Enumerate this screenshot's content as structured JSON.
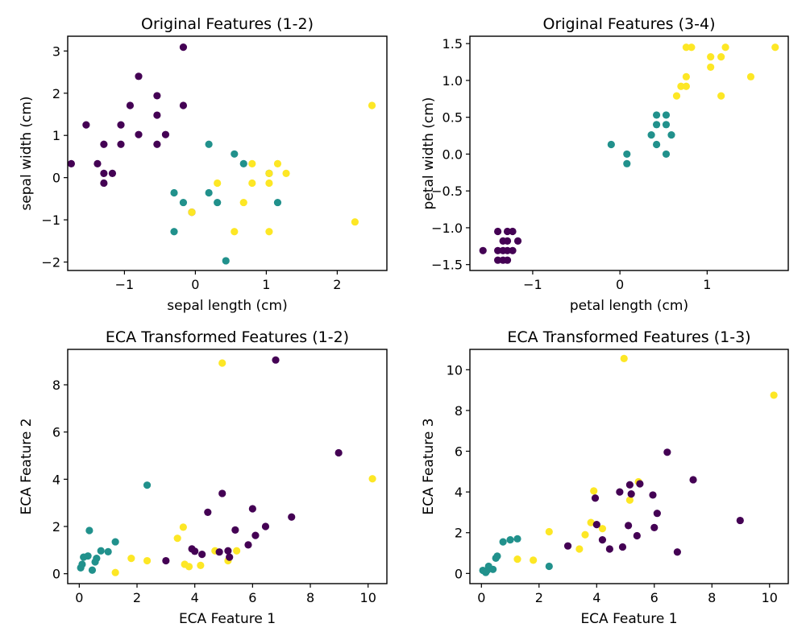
{
  "figure": {
    "palette": {
      "0": "#440154",
      "1": "#21918c",
      "2": "#fde725"
    }
  },
  "chart_data": [
    {
      "type": "scatter",
      "title": "Original Features (1-2)",
      "xlabel": "sepal length (cm)",
      "ylabel": "sepal width (cm)",
      "xlim": [
        -1.8,
        2.7
      ],
      "ylim": [
        -2.2,
        3.35
      ],
      "xticks": [
        -1,
        0,
        1,
        2
      ],
      "yticks": [
        -2,
        -1,
        0,
        1,
        2,
        3
      ],
      "grid": false,
      "points": [
        {
          "x": -1.75,
          "y": 0.33,
          "c": 0
        },
        {
          "x": -1.54,
          "y": 1.25,
          "c": 0
        },
        {
          "x": -1.38,
          "y": 0.33,
          "c": 0
        },
        {
          "x": -1.29,
          "y": 0.79,
          "c": 0
        },
        {
          "x": -1.29,
          "y": 0.1,
          "c": 0
        },
        {
          "x": -1.29,
          "y": -0.13,
          "c": 0
        },
        {
          "x": -1.17,
          "y": 0.1,
          "c": 0
        },
        {
          "x": -1.05,
          "y": 1.25,
          "c": 0
        },
        {
          "x": -1.05,
          "y": 0.79,
          "c": 0
        },
        {
          "x": -0.92,
          "y": 1.71,
          "c": 0
        },
        {
          "x": -0.8,
          "y": 2.4,
          "c": 0
        },
        {
          "x": -0.8,
          "y": 1.02,
          "c": 0
        },
        {
          "x": -0.54,
          "y": 1.94,
          "c": 0
        },
        {
          "x": -0.54,
          "y": 1.48,
          "c": 0
        },
        {
          "x": -0.54,
          "y": 0.79,
          "c": 0
        },
        {
          "x": -0.42,
          "y": 1.02,
          "c": 0
        },
        {
          "x": -0.17,
          "y": 3.09,
          "c": 0
        },
        {
          "x": -0.17,
          "y": 1.71,
          "c": 0
        },
        {
          "x": -0.05,
          "y": -0.82,
          "c": 0
        },
        {
          "x": -0.3,
          "y": -0.36,
          "c": 1
        },
        {
          "x": -0.3,
          "y": -1.28,
          "c": 1
        },
        {
          "x": -0.17,
          "y": -0.59,
          "c": 1
        },
        {
          "x": 0.19,
          "y": 0.79,
          "c": 1
        },
        {
          "x": 0.19,
          "y": -0.36,
          "c": 1
        },
        {
          "x": 0.31,
          "y": -0.59,
          "c": 1
        },
        {
          "x": 0.43,
          "y": -1.97,
          "c": 1
        },
        {
          "x": 0.55,
          "y": 0.56,
          "c": 1
        },
        {
          "x": 0.68,
          "y": 0.33,
          "c": 1
        },
        {
          "x": 1.04,
          "y": 0.1,
          "c": 1
        },
        {
          "x": 1.16,
          "y": -0.59,
          "c": 1
        },
        {
          "x": -0.05,
          "y": -0.82,
          "c": 2
        },
        {
          "x": 0.31,
          "y": -0.13,
          "c": 2
        },
        {
          "x": 0.55,
          "y": -1.28,
          "c": 2
        },
        {
          "x": 0.68,
          "y": -0.59,
          "c": 2
        },
        {
          "x": 0.8,
          "y": 0.33,
          "c": 2
        },
        {
          "x": 0.8,
          "y": -0.13,
          "c": 2
        },
        {
          "x": 1.04,
          "y": 0.1,
          "c": 2
        },
        {
          "x": 1.04,
          "y": -0.13,
          "c": 2
        },
        {
          "x": 1.04,
          "y": -1.28,
          "c": 2
        },
        {
          "x": 1.16,
          "y": 0.33,
          "c": 2
        },
        {
          "x": 1.28,
          "y": 0.1,
          "c": 2
        },
        {
          "x": 2.25,
          "y": -1.05,
          "c": 2
        },
        {
          "x": 2.49,
          "y": 1.71,
          "c": 2
        }
      ]
    },
    {
      "type": "scatter",
      "title": "Original Features (3-4)",
      "xlabel": "petal length (cm)",
      "ylabel": "petal width (cm)",
      "xlim": [
        -1.72,
        1.93
      ],
      "ylim": [
        -1.58,
        1.6
      ],
      "xticks": [
        -1,
        0,
        1
      ],
      "yticks": [
        -1.5,
        -1.0,
        -0.5,
        0.0,
        0.5,
        1.0,
        1.5
      ],
      "ytick_labels": [
        "−1.5",
        "−1.0",
        "−0.5",
        "0.0",
        "0.5",
        "1.0",
        "1.5"
      ],
      "grid": false,
      "points": [
        {
          "x": -1.57,
          "y": -1.31,
          "c": 0
        },
        {
          "x": -1.4,
          "y": -1.05,
          "c": 0
        },
        {
          "x": -1.4,
          "y": -1.31,
          "c": 0
        },
        {
          "x": -1.4,
          "y": -1.44,
          "c": 0
        },
        {
          "x": -1.34,
          "y": -1.18,
          "c": 0
        },
        {
          "x": -1.34,
          "y": -1.31,
          "c": 0
        },
        {
          "x": -1.34,
          "y": -1.44,
          "c": 0
        },
        {
          "x": -1.29,
          "y": -1.05,
          "c": 0
        },
        {
          "x": -1.29,
          "y": -1.18,
          "c": 0
        },
        {
          "x": -1.29,
          "y": -1.31,
          "c": 0
        },
        {
          "x": -1.29,
          "y": -1.44,
          "c": 0
        },
        {
          "x": -1.23,
          "y": -1.05,
          "c": 0
        },
        {
          "x": -1.23,
          "y": -1.31,
          "c": 0
        },
        {
          "x": -1.17,
          "y": -1.18,
          "c": 0
        },
        {
          "x": -0.1,
          "y": 0.13,
          "c": 1
        },
        {
          "x": 0.08,
          "y": 0.0,
          "c": 1
        },
        {
          "x": 0.08,
          "y": -0.13,
          "c": 1
        },
        {
          "x": 0.36,
          "y": 0.26,
          "c": 1
        },
        {
          "x": 0.42,
          "y": 0.13,
          "c": 1
        },
        {
          "x": 0.42,
          "y": 0.4,
          "c": 1
        },
        {
          "x": 0.42,
          "y": 0.53,
          "c": 1
        },
        {
          "x": 0.53,
          "y": 0.0,
          "c": 1
        },
        {
          "x": 0.53,
          "y": 0.4,
          "c": 1
        },
        {
          "x": 0.53,
          "y": 0.53,
          "c": 1
        },
        {
          "x": 0.59,
          "y": 0.26,
          "c": 1
        },
        {
          "x": 0.65,
          "y": 0.79,
          "c": 2
        },
        {
          "x": 0.7,
          "y": 0.92,
          "c": 2
        },
        {
          "x": 0.76,
          "y": 0.92,
          "c": 2
        },
        {
          "x": 0.76,
          "y": 1.05,
          "c": 2
        },
        {
          "x": 0.76,
          "y": 1.45,
          "c": 2
        },
        {
          "x": 0.82,
          "y": 1.45,
          "c": 2
        },
        {
          "x": 1.04,
          "y": 1.18,
          "c": 2
        },
        {
          "x": 1.04,
          "y": 1.32,
          "c": 2
        },
        {
          "x": 1.16,
          "y": 0.79,
          "c": 2
        },
        {
          "x": 1.16,
          "y": 1.32,
          "c": 2
        },
        {
          "x": 1.21,
          "y": 1.45,
          "c": 2
        },
        {
          "x": 1.5,
          "y": 1.05,
          "c": 2
        },
        {
          "x": 1.78,
          "y": 1.45,
          "c": 2
        }
      ]
    },
    {
      "type": "scatter",
      "title": "ECA Transformed Features (1-2)",
      "xlabel": "ECA Feature 1",
      "ylabel": "ECA Feature 2",
      "xlim": [
        -0.4,
        10.65
      ],
      "ylim": [
        -0.42,
        9.5
      ],
      "xticks": [
        0,
        2,
        4,
        6,
        8,
        10
      ],
      "yticks": [
        0,
        2,
        4,
        6,
        8
      ],
      "grid": false,
      "points": [
        {
          "x": 0.05,
          "y": 0.25,
          "c": 1
        },
        {
          "x": 0.1,
          "y": 0.4,
          "c": 1
        },
        {
          "x": 0.15,
          "y": 0.7,
          "c": 1
        },
        {
          "x": 0.3,
          "y": 0.75,
          "c": 1
        },
        {
          "x": 0.35,
          "y": 1.83,
          "c": 1
        },
        {
          "x": 0.45,
          "y": 0.15,
          "c": 1
        },
        {
          "x": 0.55,
          "y": 0.5,
          "c": 1
        },
        {
          "x": 0.6,
          "y": 0.65,
          "c": 1
        },
        {
          "x": 0.75,
          "y": 0.97,
          "c": 1
        },
        {
          "x": 1.0,
          "y": 0.93,
          "c": 1
        },
        {
          "x": 1.25,
          "y": 1.35,
          "c": 1
        },
        {
          "x": 2.35,
          "y": 3.75,
          "c": 1
        },
        {
          "x": 1.25,
          "y": 0.05,
          "c": 2
        },
        {
          "x": 1.8,
          "y": 0.65,
          "c": 2
        },
        {
          "x": 2.35,
          "y": 0.55,
          "c": 2
        },
        {
          "x": 3.4,
          "y": 1.5,
          "c": 2
        },
        {
          "x": 3.6,
          "y": 1.97,
          "c": 2
        },
        {
          "x": 3.65,
          "y": 0.4,
          "c": 2
        },
        {
          "x": 3.8,
          "y": 0.3,
          "c": 2
        },
        {
          "x": 4.2,
          "y": 0.35,
          "c": 2
        },
        {
          "x": 4.7,
          "y": 0.97,
          "c": 2
        },
        {
          "x": 4.95,
          "y": 8.92,
          "c": 2
        },
        {
          "x": 5.15,
          "y": 0.55,
          "c": 2
        },
        {
          "x": 5.45,
          "y": 0.97,
          "c": 2
        },
        {
          "x": 10.15,
          "y": 4.02,
          "c": 2
        },
        {
          "x": 3.0,
          "y": 0.55,
          "c": 0
        },
        {
          "x": 3.9,
          "y": 1.05,
          "c": 0
        },
        {
          "x": 4.0,
          "y": 0.95,
          "c": 0
        },
        {
          "x": 4.25,
          "y": 0.82,
          "c": 0
        },
        {
          "x": 4.45,
          "y": 2.6,
          "c": 0
        },
        {
          "x": 4.85,
          "y": 0.92,
          "c": 0
        },
        {
          "x": 4.95,
          "y": 3.4,
          "c": 0
        },
        {
          "x": 5.15,
          "y": 0.97,
          "c": 0
        },
        {
          "x": 5.2,
          "y": 0.7,
          "c": 0
        },
        {
          "x": 5.4,
          "y": 1.85,
          "c": 0
        },
        {
          "x": 5.85,
          "y": 1.22,
          "c": 0
        },
        {
          "x": 6.0,
          "y": 2.75,
          "c": 0
        },
        {
          "x": 6.1,
          "y": 1.62,
          "c": 0
        },
        {
          "x": 6.45,
          "y": 2.0,
          "c": 0
        },
        {
          "x": 6.8,
          "y": 9.05,
          "c": 0
        },
        {
          "x": 7.35,
          "y": 2.4,
          "c": 0
        },
        {
          "x": 8.98,
          "y": 5.12,
          "c": 0
        }
      ]
    },
    {
      "type": "scatter",
      "title": "ECA Transformed Features (1-3)",
      "xlabel": "ECA Feature 1",
      "ylabel": "ECA Feature 3",
      "xlim": [
        -0.4,
        10.65
      ],
      "ylim": [
        -0.5,
        11.0
      ],
      "xticks": [
        0,
        2,
        4,
        6,
        8,
        10
      ],
      "yticks": [
        0,
        2,
        4,
        6,
        8,
        10
      ],
      "grid": false,
      "points": [
        {
          "x": 0.05,
          "y": 0.15,
          "c": 1
        },
        {
          "x": 0.15,
          "y": 0.05,
          "c": 1
        },
        {
          "x": 0.2,
          "y": 0.15,
          "c": 1
        },
        {
          "x": 0.25,
          "y": 0.35,
          "c": 1
        },
        {
          "x": 0.4,
          "y": 0.2,
          "c": 1
        },
        {
          "x": 0.5,
          "y": 0.75,
          "c": 1
        },
        {
          "x": 0.55,
          "y": 0.85,
          "c": 1
        },
        {
          "x": 0.75,
          "y": 1.55,
          "c": 1
        },
        {
          "x": 1.0,
          "y": 1.65,
          "c": 1
        },
        {
          "x": 1.25,
          "y": 1.7,
          "c": 1
        },
        {
          "x": 2.35,
          "y": 0.35,
          "c": 1
        },
        {
          "x": 1.25,
          "y": 0.7,
          "c": 2
        },
        {
          "x": 1.8,
          "y": 0.65,
          "c": 2
        },
        {
          "x": 2.35,
          "y": 2.05,
          "c": 2
        },
        {
          "x": 3.4,
          "y": 1.2,
          "c": 2
        },
        {
          "x": 3.6,
          "y": 1.9,
          "c": 2
        },
        {
          "x": 3.8,
          "y": 2.5,
          "c": 2
        },
        {
          "x": 3.9,
          "y": 4.05,
          "c": 2
        },
        {
          "x": 4.2,
          "y": 2.2,
          "c": 2
        },
        {
          "x": 4.95,
          "y": 10.55,
          "c": 2
        },
        {
          "x": 5.15,
          "y": 3.6,
          "c": 2
        },
        {
          "x": 5.45,
          "y": 4.5,
          "c": 2
        },
        {
          "x": 10.15,
          "y": 8.75,
          "c": 2
        },
        {
          "x": 3.0,
          "y": 1.35,
          "c": 0
        },
        {
          "x": 3.95,
          "y": 3.7,
          "c": 0
        },
        {
          "x": 4.0,
          "y": 2.4,
          "c": 0
        },
        {
          "x": 4.2,
          "y": 1.65,
          "c": 0
        },
        {
          "x": 4.45,
          "y": 1.2,
          "c": 0
        },
        {
          "x": 4.8,
          "y": 4.0,
          "c": 0
        },
        {
          "x": 4.9,
          "y": 1.3,
          "c": 0
        },
        {
          "x": 5.1,
          "y": 2.35,
          "c": 0
        },
        {
          "x": 5.15,
          "y": 4.35,
          "c": 0
        },
        {
          "x": 5.2,
          "y": 3.9,
          "c": 0
        },
        {
          "x": 5.4,
          "y": 1.85,
          "c": 0
        },
        {
          "x": 5.5,
          "y": 4.4,
          "c": 0
        },
        {
          "x": 5.95,
          "y": 3.85,
          "c": 0
        },
        {
          "x": 6.0,
          "y": 2.25,
          "c": 0
        },
        {
          "x": 6.1,
          "y": 2.95,
          "c": 0
        },
        {
          "x": 6.45,
          "y": 5.95,
          "c": 0
        },
        {
          "x": 6.8,
          "y": 1.05,
          "c": 0
        },
        {
          "x": 7.35,
          "y": 4.6,
          "c": 0
        },
        {
          "x": 8.98,
          "y": 2.6,
          "c": 0
        }
      ]
    }
  ]
}
